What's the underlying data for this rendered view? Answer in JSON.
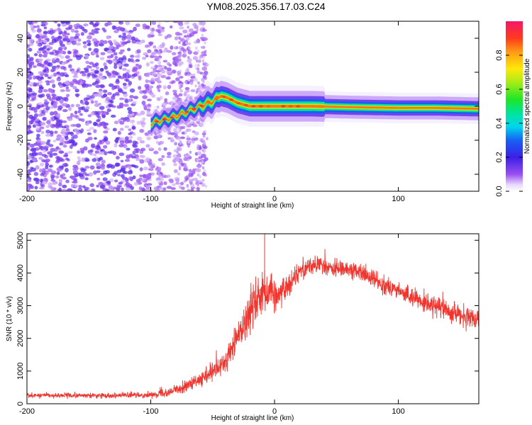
{
  "title": "YM08.2025.356.17.03.C24",
  "chart_data": [
    {
      "type": "heatmap",
      "name": "spectrogram",
      "xlabel": "Height of straight line (km)",
      "ylabel": "Frequency (Hz)",
      "xlim": [
        -200,
        165
      ],
      "ylim": [
        -50,
        50
      ],
      "xticks": [
        -200,
        -100,
        0,
        100
      ],
      "yticks": [
        -40,
        -20,
        0,
        20,
        40
      ],
      "ridge": {
        "description": "dominant frequency trace",
        "x": [
          -100,
          -90,
          -80,
          -70,
          -60,
          -50,
          -43,
          -38,
          -30,
          -20,
          -10,
          0,
          10,
          30,
          60,
          100,
          130,
          165
        ],
        "y": [
          -10,
          -8,
          -6,
          -3,
          0,
          3,
          6,
          5,
          2,
          0,
          0,
          0,
          0,
          0,
          -0.5,
          -1,
          -1,
          -1.5
        ]
      },
      "noise_region_x": [
        -200,
        -55
      ],
      "colorbar": {
        "label": "Normalized spectral amplitude",
        "range": [
          0.0,
          1.0
        ],
        "ticks": [
          "0.0",
          "0.2",
          "0.4",
          "0.6",
          "0.8"
        ],
        "tick_values": [
          0.0,
          0.2,
          0.4,
          0.6,
          0.8
        ]
      }
    },
    {
      "type": "line",
      "name": "snr",
      "xlabel": "Height of straight line (km)",
      "ylabel": "SNR (10 * v/v)",
      "xlim": [
        -200,
        165
      ],
      "ylim": [
        0,
        5200
      ],
      "xticks": [
        -200,
        -100,
        0,
        100
      ],
      "yticks": [
        0,
        1000,
        2000,
        3000,
        4000,
        5000
      ],
      "color": "#f0352e",
      "trend": {
        "x": [
          -200,
          -150,
          -120,
          -100,
          -90,
          -80,
          -70,
          -60,
          -50,
          -40,
          -35,
          -30,
          -20,
          -15,
          -10,
          -5,
          0,
          10,
          20,
          30,
          40,
          50,
          60,
          70,
          80,
          100,
          120,
          140,
          165
        ],
        "y": [
          260,
          250,
          260,
          270,
          330,
          420,
          560,
          720,
          950,
          1250,
          1650,
          2050,
          2800,
          3200,
          3450,
          3500,
          3300,
          3550,
          4100,
          4250,
          4200,
          4100,
          4150,
          4000,
          3800,
          3450,
          3100,
          2850,
          2500
        ]
      },
      "noise_amplitude": {
        "x": [
          -200,
          -100,
          -60,
          -40,
          -20,
          -10,
          0,
          20,
          60,
          120,
          165
        ],
        "y": [
          60,
          70,
          180,
          320,
          550,
          700,
          450,
          250,
          220,
          230,
          280
        ]
      },
      "peak": {
        "x": -8,
        "y": 5200
      }
    }
  ]
}
